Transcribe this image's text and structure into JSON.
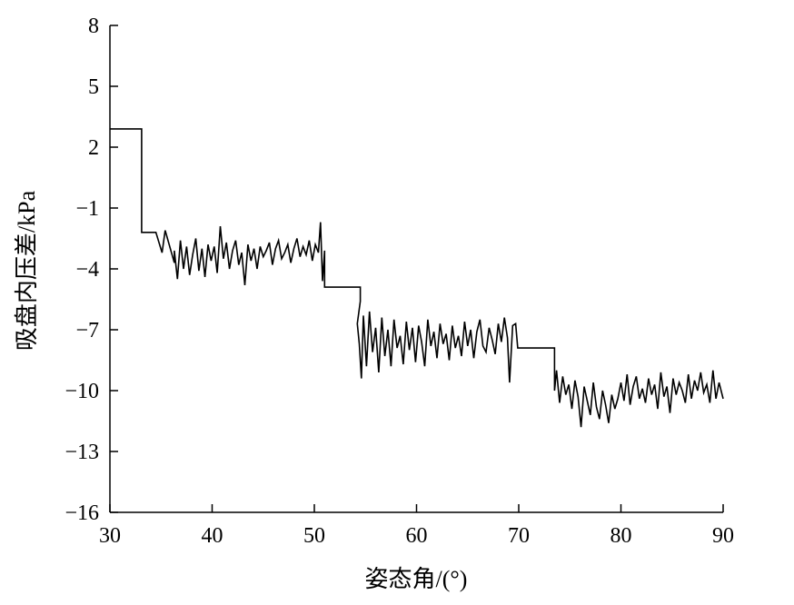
{
  "chart_data": {
    "type": "line",
    "title": "",
    "xlabel": "姿态角/(°)",
    "ylabel": "吸盘内压差/kPa",
    "xlim": [
      30,
      90
    ],
    "ylim": [
      -16,
      8
    ],
    "x_ticks": [
      30,
      40,
      50,
      60,
      70,
      80,
      90
    ],
    "x_tick_labels": [
      "30",
      "40",
      "50",
      "60",
      "70",
      "80",
      "90"
    ],
    "y_ticks": [
      8,
      5,
      2,
      -1,
      -4,
      -7,
      -10,
      -13,
      -16
    ],
    "y_tick_labels": [
      "8",
      "5",
      "2",
      "−1",
      "−4",
      "−7",
      "−10",
      "−13",
      "−16"
    ],
    "grid": false,
    "series": [
      {
        "color": "#000000",
        "x": [
          30.0,
          33.1,
          33.1,
          34.5,
          35.1,
          35.4,
          36.3,
          36.3,
          36.6,
          36.9,
          37.2,
          37.5,
          37.8,
          38.1,
          38.4,
          38.7,
          39.0,
          39.3,
          39.6,
          39.9,
          40.2,
          40.5,
          40.8,
          41.1,
          41.4,
          41.7,
          42.0,
          42.3,
          42.6,
          42.9,
          43.2,
          43.5,
          43.8,
          44.1,
          44.4,
          44.7,
          45.0,
          45.3,
          45.6,
          45.9,
          46.2,
          46.5,
          46.8,
          47.1,
          47.4,
          47.7,
          48.0,
          48.3,
          48.6,
          48.9,
          49.2,
          49.5,
          49.8,
          50.1,
          50.4,
          50.6,
          50.8,
          51.0,
          51.0,
          54.5,
          54.5,
          54.2,
          54.4,
          54.6,
          54.8,
          55.1,
          55.4,
          55.7,
          56.0,
          56.3,
          56.6,
          56.9,
          57.2,
          57.5,
          57.8,
          58.1,
          58.4,
          58.7,
          59.0,
          59.3,
          59.6,
          59.9,
          60.2,
          60.5,
          60.8,
          61.1,
          61.4,
          61.7,
          62.0,
          62.3,
          62.6,
          62.9,
          63.2,
          63.5,
          63.8,
          64.1,
          64.4,
          64.7,
          65.0,
          65.3,
          65.6,
          65.9,
          66.2,
          66.5,
          66.8,
          67.1,
          67.4,
          67.7,
          68.0,
          68.3,
          68.6,
          68.9,
          69.1,
          69.4,
          69.7,
          69.9,
          69.9,
          73.5,
          73.5,
          73.7,
          74.0,
          74.3,
          74.6,
          74.9,
          75.2,
          75.5,
          75.8,
          76.1,
          76.4,
          76.7,
          77.0,
          77.3,
          77.6,
          77.9,
          78.2,
          78.5,
          78.8,
          79.1,
          79.4,
          79.7,
          80.0,
          80.3,
          80.6,
          80.9,
          81.2,
          81.5,
          81.8,
          82.1,
          82.4,
          82.7,
          83.0,
          83.3,
          83.6,
          83.9,
          84.2,
          84.5,
          84.8,
          85.1,
          85.4,
          85.7,
          86.0,
          86.3,
          86.6,
          86.9,
          87.2,
          87.5,
          87.8,
          88.1,
          88.4,
          88.7,
          89.0,
          89.3,
          89.6,
          90.0
        ],
        "y": [
          2.9,
          2.9,
          -2.2,
          -2.2,
          -3.2,
          -2.1,
          -3.7,
          -3.1,
          -4.5,
          -2.6,
          -4.0,
          -2.9,
          -4.3,
          -3.3,
          -2.5,
          -4.1,
          -3.0,
          -4.4,
          -2.8,
          -3.6,
          -2.9,
          -4.2,
          -1.9,
          -3.5,
          -2.7,
          -4.0,
          -3.1,
          -2.6,
          -3.8,
          -3.2,
          -4.8,
          -2.8,
          -3.6,
          -3.0,
          -4.0,
          -2.9,
          -3.4,
          -3.1,
          -2.7,
          -3.8,
          -3.0,
          -2.6,
          -3.5,
          -3.2,
          -2.8,
          -3.7,
          -3.0,
          -2.5,
          -3.4,
          -2.9,
          -3.3,
          -2.6,
          -3.6,
          -2.8,
          -3.2,
          -1.7,
          -4.6,
          -3.1,
          -4.9,
          -4.9,
          -5.6,
          -6.7,
          -7.7,
          -9.4,
          -6.3,
          -8.8,
          -6.1,
          -8.1,
          -6.9,
          -9.1,
          -6.4,
          -8.3,
          -7.0,
          -8.8,
          -6.5,
          -7.9,
          -7.3,
          -8.7,
          -6.6,
          -8.0,
          -6.9,
          -8.6,
          -6.8,
          -7.6,
          -8.8,
          -6.5,
          -7.8,
          -7.1,
          -8.4,
          -6.7,
          -7.7,
          -7.2,
          -8.5,
          -6.8,
          -7.9,
          -7.3,
          -8.3,
          -6.6,
          -7.8,
          -7.0,
          -8.4,
          -7.1,
          -6.5,
          -7.8,
          -8.1,
          -6.9,
          -7.5,
          -8.2,
          -6.7,
          -7.6,
          -6.4,
          -7.4,
          -9.6,
          -6.8,
          -6.7,
          -7.9,
          -7.9,
          -7.9,
          -10.0,
          -9.0,
          -10.6,
          -9.3,
          -10.2,
          -9.7,
          -10.9,
          -9.5,
          -10.3,
          -11.8,
          -9.8,
          -10.5,
          -11.2,
          -9.6,
          -10.8,
          -11.4,
          -10.0,
          -10.7,
          -11.6,
          -10.2,
          -10.9,
          -10.4,
          -9.6,
          -10.5,
          -9.2,
          -10.7,
          -9.8,
          -9.3,
          -10.4,
          -9.9,
          -10.6,
          -9.4,
          -10.2,
          -9.7,
          -10.9,
          -9.1,
          -10.3,
          -9.8,
          -11.1,
          -9.4,
          -10.2,
          -9.6,
          -10.0,
          -10.6,
          -9.2,
          -10.4,
          -9.5,
          -10.0,
          -9.1,
          -10.1,
          -9.7,
          -10.6,
          -9.0,
          -10.4,
          -9.6,
          -10.4
        ]
      }
    ]
  }
}
